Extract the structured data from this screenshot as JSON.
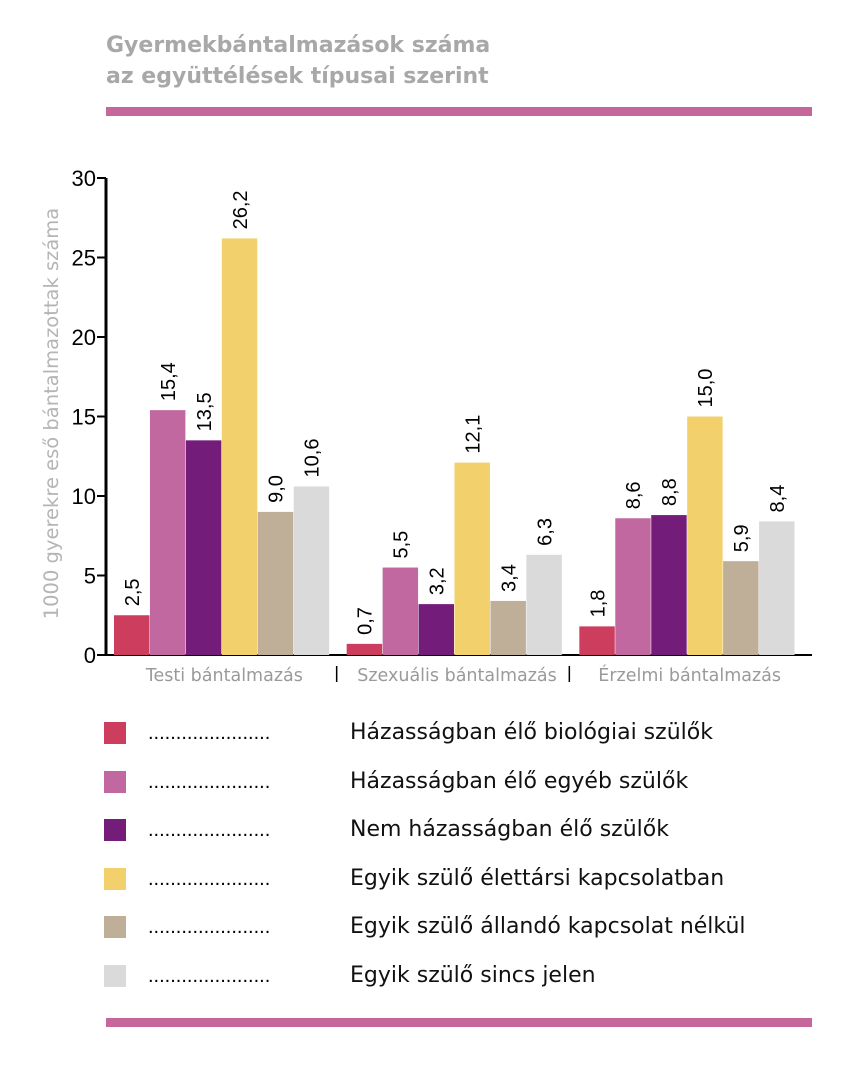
{
  "title": {
    "line1": "Gyermekbántalmazások száma",
    "line2": "az együttélések típusai szerint"
  },
  "colors": {
    "rule": "#c6679c",
    "title": "#a8a8a8",
    "axis": "#000000",
    "category_text": "#9a9a9a",
    "ylabel_text": "#b5b5b5"
  },
  "chart_data": {
    "type": "bar",
    "ylabel": "1000 gyerekre eső bántalmazottak száma",
    "ylim": [
      0,
      30
    ],
    "yticks": [
      0,
      5,
      10,
      15,
      20,
      25,
      30
    ],
    "categories": [
      "Testi bántalmazás",
      "Szexuális bántalmazás",
      "Érzelmi bántalmazás"
    ],
    "series": [
      {
        "name": "Házasságban élő biológiai szülők",
        "color": "#cc3d5e",
        "values": [
          2.5,
          0.7,
          1.8
        ],
        "labels": [
          "2,5",
          "0,7",
          "1,8"
        ]
      },
      {
        "name": "Házasságban élő egyéb szülők",
        "color": "#c0689f",
        "values": [
          15.4,
          5.5,
          8.6
        ],
        "labels": [
          "15,4",
          "5,5",
          "8,6"
        ]
      },
      {
        "name": "Nem házasságban élő szülők",
        "color": "#731c7a",
        "values": [
          13.5,
          3.2,
          8.8
        ],
        "labels": [
          "13,5",
          "3,2",
          "8,8"
        ]
      },
      {
        "name": "Egyik szülő élettársi kapcsolatban",
        "color": "#f2d06b",
        "values": [
          26.2,
          12.1,
          15.0
        ],
        "labels": [
          "26,2",
          "12,1",
          "15,0"
        ]
      },
      {
        "name": "Egyik szülő állandó kapcsolat nélkül",
        "color": "#bfae98",
        "values": [
          9.0,
          3.4,
          5.9
        ],
        "labels": [
          "9,0",
          "3,4",
          "5,9"
        ]
      },
      {
        "name": "Egyik szülő sincs jelen",
        "color": "#dadada",
        "values": [
          10.6,
          6.3,
          8.4
        ],
        "labels": [
          "10,6",
          "6,3",
          "8,4"
        ]
      }
    ],
    "legend": {
      "placement": "bottom",
      "leader": "......................"
    },
    "grid": false
  }
}
